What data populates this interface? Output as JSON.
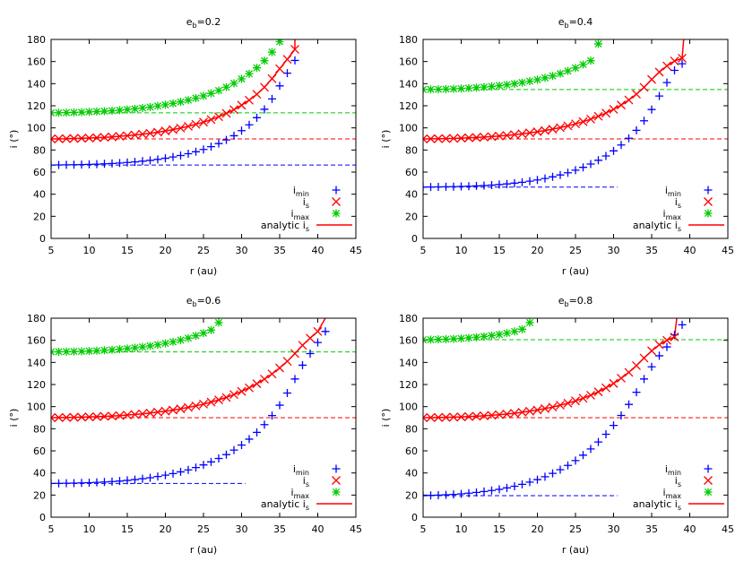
{
  "chart_data": [
    {
      "type": "scatter",
      "title_base": "e",
      "title_sub": "b",
      "title_value": "=0.2",
      "xlabel": "r (au)",
      "ylabel": "i (°)",
      "xlim": [
        5,
        45
      ],
      "ylim": [
        0,
        180
      ],
      "xticks": [
        5,
        10,
        15,
        20,
        25,
        30,
        35,
        40,
        45
      ],
      "yticks": [
        0,
        20,
        40,
        60,
        80,
        100,
        120,
        140,
        160,
        180
      ],
      "refs": {
        "imin": 66.4,
        "is": 90,
        "imax": 113.6,
        "xend_imin": 45,
        "xend_is": 45,
        "xend_imax": 45
      },
      "rmax": 37.0,
      "series": [
        {
          "name": "i_min",
          "marker": "plus",
          "color": "#0000ff",
          "x": [
            5,
            6,
            7,
            8,
            9,
            10,
            11,
            12,
            13,
            14,
            15,
            16,
            17,
            18,
            19,
            20,
            21,
            22,
            23,
            24,
            25,
            26,
            27,
            28,
            29,
            30,
            31,
            32,
            33,
            34,
            35,
            36,
            37
          ],
          "y": [
            66.4,
            66.5,
            66.6,
            66.7,
            66.8,
            67,
            67.2,
            67.5,
            67.8,
            68.2,
            68.7,
            69.2,
            69.9,
            70.6,
            71.5,
            72.5,
            73.7,
            75,
            76.6,
            78.4,
            80.5,
            83,
            85.8,
            89.1,
            92.9,
            97.5,
            102.8,
            109.2,
            116.8,
            126.2,
            138,
            149.5,
            161
          ]
        },
        {
          "name": "i_s",
          "marker": "cross",
          "color": "#ff0000",
          "x": [
            5,
            6,
            7,
            8,
            9,
            10,
            11,
            12,
            13,
            14,
            15,
            16,
            17,
            18,
            19,
            20,
            21,
            22,
            23,
            24,
            25,
            26,
            27,
            28,
            29,
            30,
            31,
            32,
            33,
            34,
            35,
            36,
            37
          ],
          "y": [
            90,
            90.1,
            90.2,
            90.4,
            90.6,
            90.8,
            91.1,
            91.5,
            91.9,
            92.4,
            92.9,
            93.6,
            94.3,
            95.1,
            96.1,
            97.2,
            98.4,
            99.8,
            101.4,
            103.2,
            105.2,
            107.5,
            110.1,
            113.1,
            116.5,
            120.5,
            125,
            130.4,
            136.8,
            144.5,
            153.5,
            162,
            171
          ]
        },
        {
          "name": "i_max",
          "marker": "star",
          "color": "#00cc00",
          "x": [
            5,
            6,
            7,
            8,
            9,
            10,
            11,
            12,
            13,
            14,
            15,
            16,
            17,
            18,
            19,
            20,
            21,
            22,
            23,
            24,
            25,
            26,
            27,
            28,
            29,
            30,
            31,
            32,
            33,
            34,
            35
          ],
          "y": [
            113.6,
            113.7,
            113.8,
            114,
            114.2,
            114.5,
            114.8,
            115.1,
            115.5,
            116,
            116.6,
            117.2,
            118,
            118.8,
            119.8,
            120.9,
            122.1,
            123.5,
            125.1,
            126.9,
            128.9,
            131.2,
            133.8,
            136.8,
            140.3,
            144.3,
            148.9,
            154.3,
            160.7,
            168.5,
            178
          ]
        },
        {
          "name": "analytic i_s",
          "marker": "line",
          "color": "#ff0000"
        }
      ],
      "legend": [
        "i",
        "min",
        "i",
        "s",
        "i",
        "max",
        "analytic i",
        "s"
      ]
    },
    {
      "type": "scatter",
      "title_base": "e",
      "title_sub": "b",
      "title_value": "=0.4",
      "xlabel": "r (au)",
      "ylabel": "i (°)",
      "xlim": [
        5,
        45
      ],
      "ylim": [
        0,
        180
      ],
      "xticks": [
        5,
        10,
        15,
        20,
        25,
        30,
        35,
        40,
        45
      ],
      "yticks": [
        0,
        20,
        40,
        60,
        80,
        100,
        120,
        140,
        160,
        180
      ],
      "refs": {
        "imin": 46.4,
        "is": 90,
        "imax": 134.7,
        "xend_imin": 30.5,
        "xend_is": 45,
        "xend_imax": 45
      },
      "rmax": 39.2,
      "series": [
        {
          "name": "i_min",
          "marker": "plus",
          "color": "#0000ff",
          "x": [
            5,
            6,
            7,
            8,
            9,
            10,
            11,
            12,
            13,
            14,
            15,
            16,
            17,
            18,
            19,
            20,
            21,
            22,
            23,
            24,
            25,
            26,
            27,
            28,
            29,
            30,
            31,
            32,
            33,
            34,
            35,
            36,
            37,
            38,
            39
          ],
          "y": [
            46.4,
            46.5,
            46.6,
            46.7,
            46.8,
            47,
            47.2,
            47.5,
            47.8,
            48.2,
            48.7,
            49.3,
            50,
            50.8,
            51.8,
            52.9,
            54.2,
            55.7,
            57.4,
            59.4,
            61.7,
            64.3,
            67.3,
            70.7,
            74.6,
            79.2,
            84.5,
            90.6,
            97.8,
            106.4,
            116.6,
            128.8,
            141,
            152,
            158
          ]
        },
        {
          "name": "i_s",
          "marker": "cross",
          "color": "#ff0000",
          "x": [
            5,
            6,
            7,
            8,
            9,
            10,
            11,
            12,
            13,
            14,
            15,
            16,
            17,
            18,
            19,
            20,
            21,
            22,
            23,
            24,
            25,
            26,
            27,
            28,
            29,
            30,
            31,
            32,
            33,
            34,
            35,
            36,
            37,
            38,
            39
          ],
          "y": [
            90,
            90.1,
            90.2,
            90.3,
            90.5,
            90.7,
            91,
            91.3,
            91.7,
            92.1,
            92.6,
            93.2,
            93.9,
            94.6,
            95.5,
            96.5,
            97.6,
            98.8,
            100.2,
            101.8,
            103.6,
            105.6,
            107.9,
            110.5,
            113.4,
            116.8,
            120.7,
            125.2,
            130.5,
            136.7,
            143.8,
            150.5,
            156,
            160.5,
            163
          ]
        },
        {
          "name": "i_max",
          "marker": "star",
          "color": "#00cc00",
          "x": [
            5,
            6,
            7,
            8,
            9,
            10,
            11,
            12,
            13,
            14,
            15,
            16,
            17,
            18,
            19,
            20,
            21,
            22,
            23,
            24,
            25,
            26,
            27,
            28
          ],
          "y": [
            134.7,
            134.8,
            134.9,
            135.1,
            135.3,
            135.6,
            136,
            136.4,
            136.9,
            137.5,
            138.2,
            139,
            139.9,
            141,
            142.2,
            143.6,
            145.2,
            147,
            149.1,
            151.5,
            154.2,
            157.3,
            160.8,
            176
          ]
        },
        {
          "name": "analytic i_s",
          "marker": "line",
          "color": "#ff0000"
        }
      ],
      "legend": [
        "i",
        "min",
        "i",
        "s",
        "i",
        "max",
        "analytic i",
        "s"
      ]
    },
    {
      "type": "scatter",
      "title_base": "e",
      "title_sub": "b",
      "title_value": "=0.6",
      "xlabel": "r (au)",
      "ylabel": "i (°)",
      "xlim": [
        5,
        45
      ],
      "ylim": [
        0,
        180
      ],
      "xticks": [
        5,
        10,
        15,
        20,
        25,
        30,
        35,
        40,
        45
      ],
      "yticks": [
        0,
        20,
        40,
        60,
        80,
        100,
        120,
        140,
        160,
        180
      ],
      "refs": {
        "imin": 30.5,
        "is": 90,
        "imax": 149.5,
        "xend_imin": 30.5,
        "xend_is": 45,
        "xend_imax": 45
      },
      "rmax": 41.0,
      "series": [
        {
          "name": "i_min",
          "marker": "plus",
          "color": "#0000ff",
          "x": [
            5,
            6,
            7,
            8,
            9,
            10,
            11,
            12,
            13,
            14,
            15,
            16,
            17,
            18,
            19,
            20,
            21,
            22,
            23,
            24,
            25,
            26,
            27,
            28,
            29,
            30,
            31,
            32,
            33,
            34,
            35,
            36,
            37,
            38,
            39,
            40,
            41
          ],
          "y": [
            30.5,
            30.6,
            30.7,
            30.8,
            31,
            31.2,
            31.5,
            31.8,
            32.2,
            32.7,
            33.3,
            34,
            34.8,
            35.7,
            36.8,
            38,
            39.4,
            41,
            42.8,
            44.9,
            47.3,
            50,
            53.1,
            56.6,
            60.7,
            65.3,
            70.6,
            76.7,
            83.7,
            91.9,
            101.3,
            112.3,
            125,
            137.5,
            148,
            158,
            168
          ]
        },
        {
          "name": "i_s",
          "marker": "cross",
          "color": "#ff0000",
          "x": [
            5,
            6,
            7,
            8,
            9,
            10,
            11,
            12,
            13,
            14,
            15,
            16,
            17,
            18,
            19,
            20,
            21,
            22,
            23,
            24,
            25,
            26,
            27,
            28,
            29,
            30,
            31,
            32,
            33,
            34,
            35,
            36,
            37,
            38,
            39,
            40
          ],
          "y": [
            90,
            90.1,
            90.2,
            90.3,
            90.5,
            90.7,
            90.9,
            91.2,
            91.5,
            91.9,
            92.4,
            92.9,
            93.5,
            94.2,
            95,
            95.9,
            96.9,
            98,
            99.3,
            100.7,
            102.3,
            104.1,
            106.1,
            108.3,
            110.9,
            113.8,
            117,
            120.7,
            124.9,
            129.6,
            135,
            141,
            148,
            155.5,
            162,
            168
          ]
        },
        {
          "name": "i_max",
          "marker": "star",
          "color": "#00cc00",
          "x": [
            5,
            6,
            7,
            8,
            9,
            10,
            11,
            12,
            13,
            14,
            15,
            16,
            17,
            18,
            19,
            20,
            21,
            22,
            23,
            24,
            25,
            26,
            27
          ],
          "y": [
            149.5,
            149.6,
            149.7,
            149.8,
            150,
            150.3,
            150.6,
            151,
            151.4,
            151.9,
            152.5,
            153.2,
            154,
            154.9,
            156,
            157.2,
            158.6,
            160.2,
            162,
            164.1,
            166.5,
            169.3,
            176
          ]
        },
        {
          "name": "analytic i_s",
          "marker": "line",
          "color": "#ff0000"
        }
      ],
      "legend": [
        "i",
        "min",
        "i",
        "s",
        "i",
        "max",
        "analytic i",
        "s"
      ]
    },
    {
      "type": "scatter",
      "title_base": "e",
      "title_sub": "b",
      "title_value": "=0.8",
      "xlabel": "r (au)",
      "ylabel": "i (°)",
      "xlim": [
        5,
        45
      ],
      "ylim": [
        0,
        180
      ],
      "xticks": [
        5,
        10,
        15,
        20,
        25,
        30,
        35,
        40,
        45
      ],
      "yticks": [
        0,
        20,
        40,
        60,
        80,
        100,
        120,
        140,
        160,
        180
      ],
      "refs": {
        "imin": 19.5,
        "is": 90,
        "imax": 160.5,
        "xend_imin": 30.5,
        "xend_is": 45,
        "xend_imax": 45
      },
      "rmax": 38.3,
      "series": [
        {
          "name": "i_min",
          "marker": "plus",
          "color": "#0000ff",
          "x": [
            5,
            6,
            7,
            8,
            9,
            10,
            11,
            12,
            13,
            14,
            15,
            16,
            17,
            18,
            19,
            20,
            21,
            22,
            23,
            24,
            25,
            26,
            27,
            28,
            29,
            30,
            31,
            32,
            33,
            34,
            35,
            36,
            37,
            38,
            39
          ],
          "y": [
            19.5,
            19.7,
            19.9,
            20.2,
            20.6,
            21.1,
            21.7,
            22.4,
            23.2,
            24.1,
            25.2,
            26.5,
            28,
            29.7,
            31.7,
            34,
            36.6,
            39.6,
            43,
            46.8,
            51.2,
            56.1,
            61.7,
            68,
            75,
            83,
            92,
            102,
            113,
            125,
            136,
            146,
            154,
            165,
            174
          ]
        },
        {
          "name": "i_s",
          "marker": "cross",
          "color": "#ff0000",
          "x": [
            5,
            6,
            7,
            8,
            9,
            10,
            11,
            12,
            13,
            14,
            15,
            16,
            17,
            18,
            19,
            20,
            21,
            22,
            23,
            24,
            25,
            26,
            27,
            28,
            29,
            30,
            31,
            32,
            33,
            34,
            35,
            36,
            37,
            38
          ],
          "y": [
            90,
            90.1,
            90.2,
            90.3,
            90.5,
            90.7,
            91,
            91.3,
            91.7,
            92.2,
            92.7,
            93.3,
            94,
            94.9,
            95.8,
            96.9,
            98.2,
            99.6,
            101.3,
            103.1,
            105.2,
            107.6,
            110.3,
            113.4,
            117,
            121,
            125.7,
            131,
            137.1,
            144,
            150.5,
            156,
            160,
            163
          ]
        },
        {
          "name": "i_max",
          "marker": "star",
          "color": "#00cc00",
          "x": [
            5,
            6,
            7,
            8,
            9,
            10,
            11,
            12,
            13,
            14,
            15,
            16,
            17,
            18,
            19
          ],
          "y": [
            160.5,
            160.6,
            160.8,
            161,
            161.3,
            161.7,
            162.2,
            162.8,
            163.5,
            164.3,
            165.3,
            166.5,
            168,
            170,
            176
          ]
        },
        {
          "name": "analytic i_s",
          "marker": "line",
          "color": "#ff0000"
        }
      ],
      "legend": [
        "i",
        "min",
        "i",
        "s",
        "i",
        "max",
        "analytic i",
        "s"
      ]
    }
  ]
}
